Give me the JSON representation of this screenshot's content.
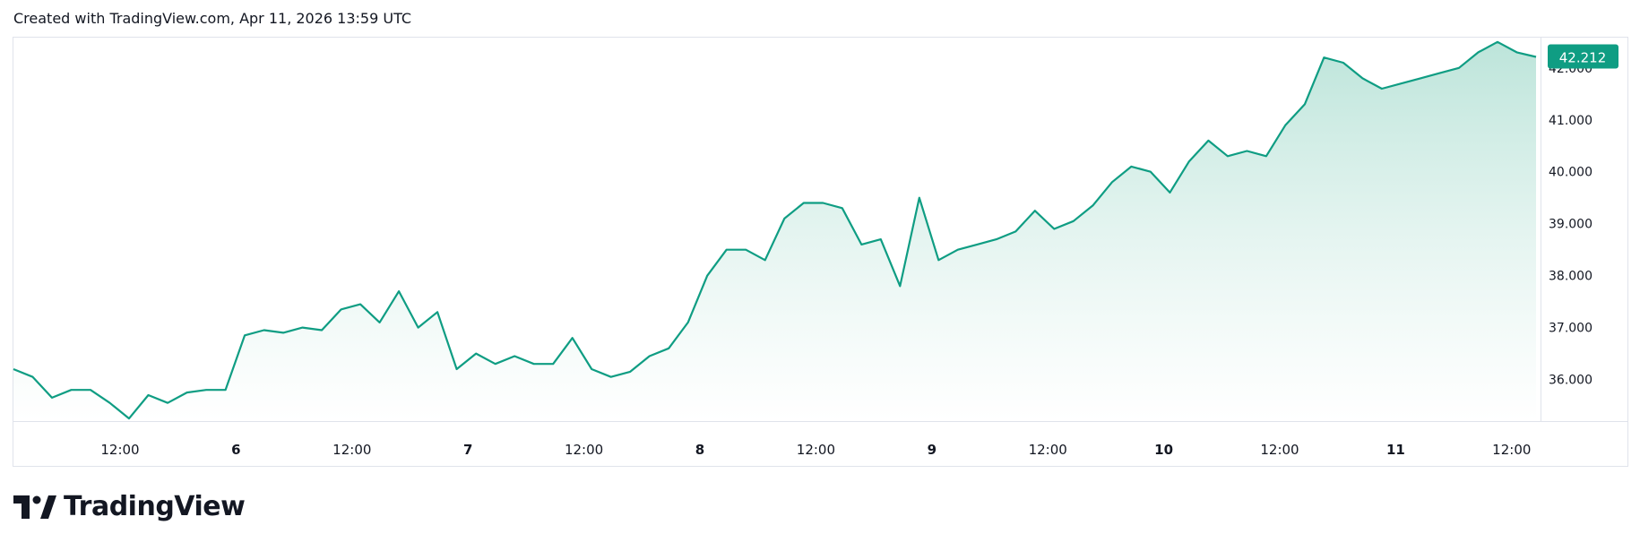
{
  "header": {
    "caption": "Created with TradingView.com, Apr 11, 2026 13:59 UTC"
  },
  "logo": {
    "text": "TradingView"
  },
  "colors": {
    "line": "#0f9d83",
    "fill_top": "#b9e3d8",
    "fill_bottom": "#ffffff",
    "last_price_bg": "#0f9d83",
    "axis_text": "#131722",
    "border": "#e0e3eb"
  },
  "chart_data": {
    "type": "area",
    "title": "",
    "xlabel": "",
    "ylabel": "",
    "x_ticks": [
      "12:00",
      "6",
      "12:00",
      "7",
      "12:00",
      "8",
      "12:00",
      "9",
      "12:00",
      "10",
      "12:00",
      "11",
      "12:00"
    ],
    "y_ticks": [
      "36.000",
      "37.000",
      "38.000",
      "39.000",
      "40.000",
      "41.000",
      "42.000"
    ],
    "ylim": [
      35.2,
      42.6
    ],
    "last_price": "42.212",
    "grid": false,
    "series": [
      {
        "x": [
          "Apr 5 00:00",
          "Apr 5 02:00",
          "Apr 5 04:00",
          "Apr 5 06:00",
          "Apr 5 08:00",
          "Apr 5 10:00",
          "Apr 5 12:00",
          "Apr 5 14:00",
          "Apr 5 16:00",
          "Apr 5 18:00",
          "Apr 5 20:00",
          "Apr 5 22:00",
          "Apr 6 00:00",
          "Apr 6 02:00",
          "Apr 6 04:00",
          "Apr 6 06:00",
          "Apr 6 08:00",
          "Apr 6 10:00",
          "Apr 6 12:00",
          "Apr 6 14:00",
          "Apr 6 16:00",
          "Apr 6 18:00",
          "Apr 6 20:00",
          "Apr 6 22:00",
          "Apr 7 00:00",
          "Apr 7 02:00",
          "Apr 7 04:00",
          "Apr 7 06:00",
          "Apr 7 08:00",
          "Apr 7 10:00",
          "Apr 7 12:00",
          "Apr 7 14:00",
          "Apr 7 16:00",
          "Apr 7 18:00",
          "Apr 7 20:00",
          "Apr 7 22:00",
          "Apr 8 00:00",
          "Apr 8 02:00",
          "Apr 8 04:00",
          "Apr 8 06:00",
          "Apr 8 08:00",
          "Apr 8 10:00",
          "Apr 8 12:00",
          "Apr 8 14:00",
          "Apr 8 16:00",
          "Apr 8 18:00",
          "Apr 8 20:00",
          "Apr 8 22:00",
          "Apr 9 00:00",
          "Apr 9 02:00",
          "Apr 9 04:00",
          "Apr 9 06:00",
          "Apr 9 08:00",
          "Apr 9 10:00",
          "Apr 9 12:00",
          "Apr 9 14:00",
          "Apr 9 16:00",
          "Apr 9 18:00",
          "Apr 9 20:00",
          "Apr 9 22:00",
          "Apr 10 00:00",
          "Apr 10 02:00",
          "Apr 10 04:00",
          "Apr 10 06:00",
          "Apr 10 08:00",
          "Apr 10 10:00",
          "Apr 10 12:00",
          "Apr 10 14:00",
          "Apr 10 16:00",
          "Apr 10 18:00",
          "Apr 10 20:00",
          "Apr 10 22:00",
          "Apr 11 00:00",
          "Apr 11 02:00",
          "Apr 11 04:00",
          "Apr 11 06:00",
          "Apr 11 08:00",
          "Apr 11 10:00",
          "Apr 11 12:00",
          "Apr 11 13:59"
        ],
        "values": [
          36.2,
          36.05,
          35.65,
          35.8,
          35.8,
          35.55,
          35.25,
          35.7,
          35.55,
          35.75,
          35.8,
          35.8,
          36.85,
          36.95,
          36.9,
          37.0,
          36.95,
          37.35,
          37.45,
          37.1,
          37.7,
          37.0,
          37.3,
          36.2,
          36.5,
          36.3,
          36.45,
          36.3,
          36.3,
          36.8,
          36.2,
          36.05,
          36.15,
          36.45,
          36.6,
          37.1,
          38.0,
          38.5,
          38.5,
          38.3,
          39.1,
          39.4,
          39.4,
          39.3,
          38.6,
          38.7,
          37.8,
          39.5,
          38.3,
          38.5,
          38.6,
          38.7,
          38.85,
          39.25,
          38.9,
          39.05,
          39.35,
          39.8,
          40.1,
          40.0,
          39.6,
          40.2,
          40.6,
          40.3,
          40.4,
          40.3,
          40.9,
          41.3,
          42.2,
          42.1,
          41.8,
          41.6,
          41.7,
          41.8,
          41.9,
          42.0,
          42.3,
          42.5,
          42.3,
          42.212
        ]
      }
    ]
  }
}
